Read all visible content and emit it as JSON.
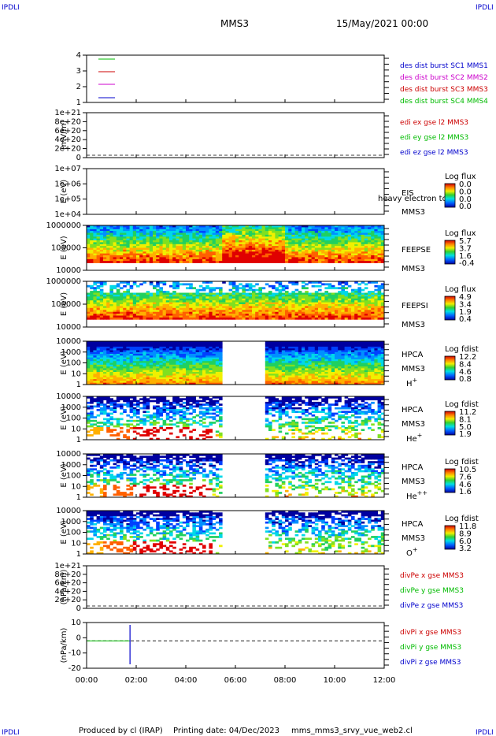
{
  "header": {
    "corner_tl": "IPDLI",
    "corner_tr": "IPDLI",
    "corner_bl": "IPDLI",
    "corner_br": "IPDLI",
    "spacecraft": "MMS3",
    "date": "15/May/2021 00:00"
  },
  "footer": {
    "produced_by": "Produced by cl (IRAP)",
    "printing_date": "Printing date: 04/Dec/2023",
    "filename": "mms_mms3_srvy_vue_web2.cl"
  },
  "chart_data": [
    {
      "type": "line",
      "panel": "burst",
      "yticks": [
        "4",
        "3",
        "2",
        "1"
      ],
      "series": [
        {
          "name": "des dist burst SC1 MMS1",
          "color": "#0000cc"
        },
        {
          "name": "des dist burst SC2 MMS2",
          "color": "#cc00cc"
        },
        {
          "name": "des dist burst SC3 MMS3",
          "color": "#cc0000"
        },
        {
          "name": "des dist burst SC4 MMS4",
          "color": "#00bb00"
        }
      ]
    },
    {
      "type": "line",
      "panel": "edi",
      "ylabel": "(mV/m)",
      "yticks": [
        "1e+21",
        "8e+20",
        "6e+20",
        "4e+20",
        "2e+20",
        "0"
      ],
      "series": [
        {
          "name": "edi ex gse l2 MMS3",
          "color": "#cc0000"
        },
        {
          "name": "edi ey gse l2 MMS3",
          "color": "#00bb00"
        },
        {
          "name": "edi ez gse l2 MMS3",
          "color": "#0000cc"
        }
      ]
    },
    {
      "type": "heatmap",
      "panel": "eis",
      "ylabel": "E (eV)",
      "yticks": [
        "1e+07",
        "1e+06",
        "1e+05",
        "1e+04"
      ],
      "instrument": "EIS",
      "instrument_sub": "heavy electron to",
      "spacecraft": "MMS3",
      "colorbar_title": "Log flux",
      "colorbar_ticks": [
        "0.0",
        "0.0",
        "0.0",
        "0.0"
      ]
    },
    {
      "type": "heatmap",
      "panel": "feepse",
      "ylabel": "E (eV)",
      "yticks": [
        "1000000",
        "100000",
        "10000"
      ],
      "instrument": "FEEPSE",
      "spacecraft": "MMS3",
      "colorbar_title": "Log flux",
      "colorbar_ticks": [
        "5.7",
        "3.7",
        "1.6",
        "-0.4"
      ]
    },
    {
      "type": "heatmap",
      "panel": "feepsi",
      "ylabel": "E (eV)",
      "yticks": [
        "1000000",
        "100000",
        "10000"
      ],
      "instrument": "FEEPSI",
      "spacecraft": "MMS3",
      "colorbar_title": "Log flux",
      "colorbar_ticks": [
        "4.9",
        "3.4",
        "1.9",
        "0.4"
      ]
    },
    {
      "type": "heatmap",
      "panel": "hpca_h",
      "ylabel": "E (eV)",
      "yticks": [
        "10000",
        "1000",
        "100",
        "10",
        "1"
      ],
      "instrument": "HPCA",
      "spacecraft": "MMS3",
      "species": "H",
      "species_sup": "+",
      "colorbar_title": "Log fdist",
      "colorbar_ticks": [
        "12.2",
        "8.4",
        "4.6",
        "0.8"
      ]
    },
    {
      "type": "heatmap",
      "panel": "hpca_he",
      "ylabel": "E (eV)",
      "yticks": [
        "10000",
        "1000",
        "100",
        "10",
        "1"
      ],
      "instrument": "HPCA",
      "spacecraft": "MMS3",
      "species": "He",
      "species_sup": "+",
      "colorbar_title": "Log fdist",
      "colorbar_ticks": [
        "11.2",
        "8.1",
        "5.0",
        "1.9"
      ]
    },
    {
      "type": "heatmap",
      "panel": "hpca_hepp",
      "ylabel": "E (eV)",
      "yticks": [
        "10000",
        "1000",
        "100",
        "10",
        "1"
      ],
      "instrument": "HPCA",
      "spacecraft": "MMS3",
      "species": "He",
      "species_sup": "++",
      "colorbar_title": "Log fdist",
      "colorbar_ticks": [
        "10.5",
        "7.6",
        "4.6",
        "1.6"
      ]
    },
    {
      "type": "heatmap",
      "panel": "hpca_o",
      "ylabel": "E (eV)",
      "yticks": [
        "10000",
        "1000",
        "100",
        "10",
        "1"
      ],
      "instrument": "HPCA",
      "spacecraft": "MMS3",
      "species": "O",
      "species_sup": "+",
      "colorbar_title": "Log fdist",
      "colorbar_ticks": [
        "11.8",
        "8.9",
        "6.0",
        "3.2"
      ]
    },
    {
      "type": "line",
      "panel": "divpe",
      "ylabel": "(nPa/km)",
      "yticks": [
        "1e+21",
        "8e+20",
        "6e+20",
        "4e+20",
        "2e+20",
        "0"
      ],
      "series": [
        {
          "name": "divPe x gse MMS3",
          "color": "#cc0000"
        },
        {
          "name": "divPe y gse MMS3",
          "color": "#00bb00"
        },
        {
          "name": "divPe z gse MMS3",
          "color": "#0000cc"
        }
      ]
    },
    {
      "type": "line",
      "panel": "divpi",
      "ylabel": "(nPa/km)",
      "yticks": [
        "10",
        "0",
        "-10",
        "-20"
      ],
      "series": [
        {
          "name": "divPi x gse MMS3",
          "color": "#cc0000"
        },
        {
          "name": "divPi y gse MMS3",
          "color": "#00bb00"
        },
        {
          "name": "divPi z gse MMS3",
          "color": "#0000cc"
        }
      ]
    }
  ],
  "xaxis": {
    "ticks": [
      "00:00",
      "02:00",
      "04:00",
      "06:00",
      "08:00",
      "10:00",
      "12:00"
    ],
    "range": [
      "00:00",
      "12:00"
    ],
    "gaps": [
      [
        "05:30",
        "07:10"
      ]
    ]
  },
  "colors": {
    "corner": "#0000cc",
    "axis": "#000000"
  }
}
